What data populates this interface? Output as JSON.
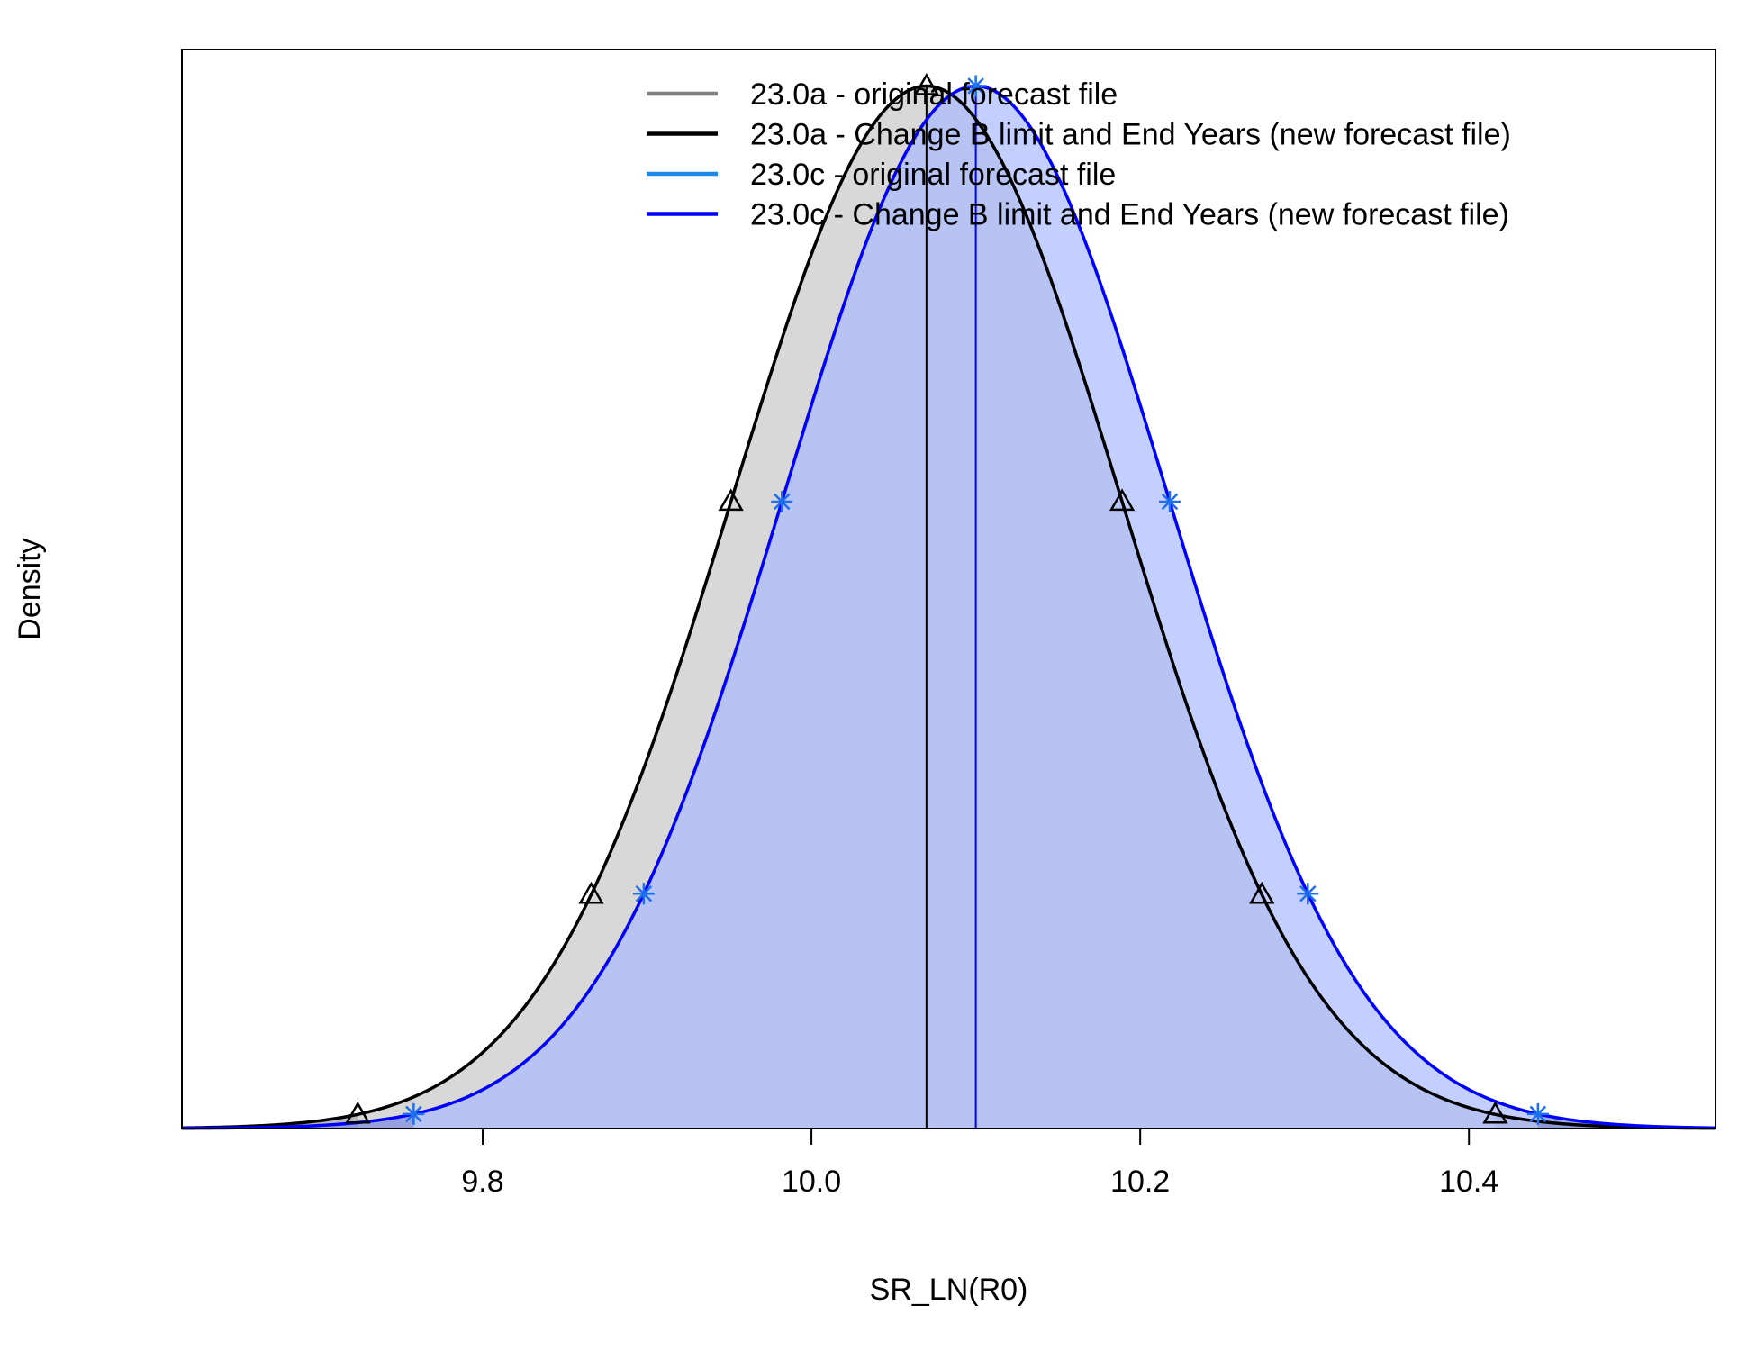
{
  "chart_data": {
    "type": "area",
    "title": "",
    "xlabel": "SR_LN(R0)",
    "ylabel": "Density",
    "xlim": [
      9.617,
      10.55
    ],
    "ylim": [
      0,
      1.035
    ],
    "xticks": [
      9.8,
      10.0,
      10.2,
      10.4
    ],
    "xtick_labels": [
      "9.8",
      "10.0",
      "10.2",
      "10.4"
    ],
    "grid": false,
    "legend_position": "top-right",
    "legend": [
      {
        "label": "23.0a - original forecast file",
        "color": "#808080"
      },
      {
        "label": "23.0a - Change B limit and End Years (new forecast file)",
        "color": "#000000"
      },
      {
        "label": "23.0c - original forecast file",
        "color": "#1e88e5"
      },
      {
        "label": "23.0c - Change B limit and End Years (new forecast file)",
        "color": "#0000ff"
      }
    ],
    "series": [
      {
        "name": "23.0a - Change B limit and End Years (new forecast file)",
        "distribution": "normal",
        "mean": 10.07,
        "sd": 0.118,
        "color": "#000000",
        "fill": "#c8c8c8",
        "tail_fill": "#a0a0a0",
        "marker": "triangle",
        "ci_95": [
          9.724,
          10.416
        ],
        "marker_x": [
          9.724,
          9.866,
          9.951,
          10.07,
          10.189,
          10.274,
          10.416
        ]
      },
      {
        "name": "23.0c - Change B limit and End Years (new forecast file)",
        "distribution": "normal",
        "mean": 10.1,
        "sd": 0.117,
        "color": "#0000ff",
        "fill": "#aabbff",
        "tail_fill": "#8090e0",
        "marker": "asterisk",
        "marker_color": "#1e6ef0",
        "ci_95": [
          9.758,
          10.442
        ],
        "marker_x": [
          9.758,
          9.898,
          9.982,
          10.1,
          10.218,
          10.302,
          10.442
        ]
      }
    ]
  }
}
